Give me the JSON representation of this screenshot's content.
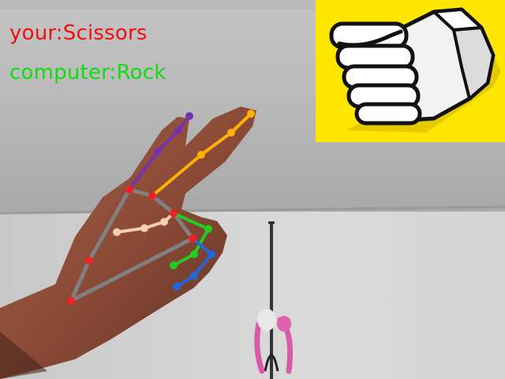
{
  "overlay": {
    "player_prefix": "your:",
    "player_choice": "Scissors",
    "computer_prefix": "computer:",
    "computer_choice": "Rock",
    "player_color": "#ee1111",
    "computer_color": "#11dd11"
  },
  "gesture_panel": {
    "icon": "rock-fist-icon",
    "background_color": "#ffe600"
  },
  "hand_landmarks": {
    "thumb_color": "#22cc22",
    "index_color": "#ffb000",
    "middle_color": "#f5d0b0",
    "ring_color": "#2266dd",
    "pinky_color": "#7733aa",
    "palm_color": "#808080",
    "joint_color": "#ee2222"
  }
}
